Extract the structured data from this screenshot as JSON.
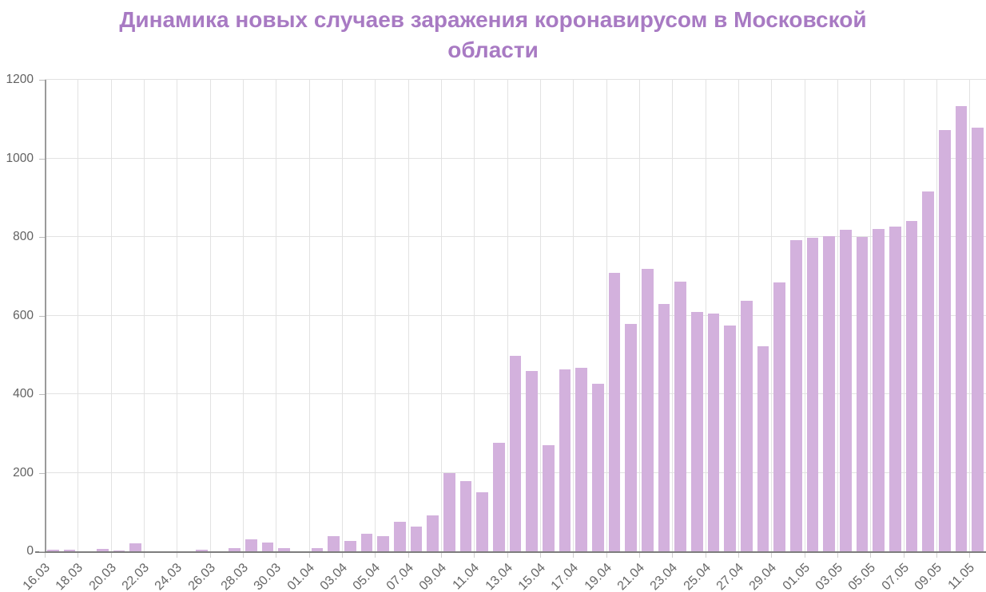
{
  "title_lines": [
    "Динамика новых случаев заражения коронавирусом в Московской",
    "области"
  ],
  "colors": {
    "title": "#a87ac3",
    "bar": "#d3b1dd",
    "axis_label": "#616161",
    "gridline": "#e2e2e2",
    "axis_line": "#8f8f8f"
  },
  "chart_data": {
    "type": "bar",
    "title": "Динамика новых случаев заражения коронавирусом в Московской области",
    "xlabel": "",
    "ylabel": "",
    "ylim": [
      0,
      1200
    ],
    "yticks": [
      0,
      200,
      400,
      600,
      800,
      1000,
      1200
    ],
    "grid": true,
    "legend": false,
    "xtick_label_every": 2,
    "categories": [
      "16.03",
      "17.03",
      "18.03",
      "19.03",
      "20.03",
      "21.03",
      "22.03",
      "23.03",
      "24.03",
      "25.03",
      "26.03",
      "27.03",
      "28.03",
      "29.03",
      "30.03",
      "31.03",
      "01.04",
      "02.04",
      "03.04",
      "04.04",
      "05.04",
      "06.04",
      "07.04",
      "08.04",
      "09.04",
      "10.04",
      "11.04",
      "12.04",
      "13.04",
      "14.04",
      "15.04",
      "16.04",
      "17.04",
      "18.04",
      "19.04",
      "20.04",
      "21.04",
      "22.04",
      "23.04",
      "24.04",
      "25.04",
      "26.04",
      "27.04",
      "28.04",
      "29.04",
      "30.04",
      "01.05",
      "02.05",
      "03.05",
      "04.05",
      "05.05",
      "06.05",
      "07.05",
      "08.05",
      "09.05",
      "10.05",
      "11.05"
    ],
    "values": [
      4,
      4,
      0,
      6,
      2,
      20,
      0,
      0,
      0,
      5,
      0,
      8,
      31,
      22,
      9,
      0,
      8,
      38,
      27,
      45,
      38,
      76,
      62,
      91,
      199,
      178,
      150,
      276,
      497,
      459,
      270,
      462,
      468,
      427,
      709,
      578,
      718,
      630,
      687,
      610,
      605,
      575,
      637,
      522,
      685,
      792,
      797,
      803,
      819,
      800,
      820,
      826,
      840,
      915,
      1073,
      1132,
      1078
    ]
  }
}
